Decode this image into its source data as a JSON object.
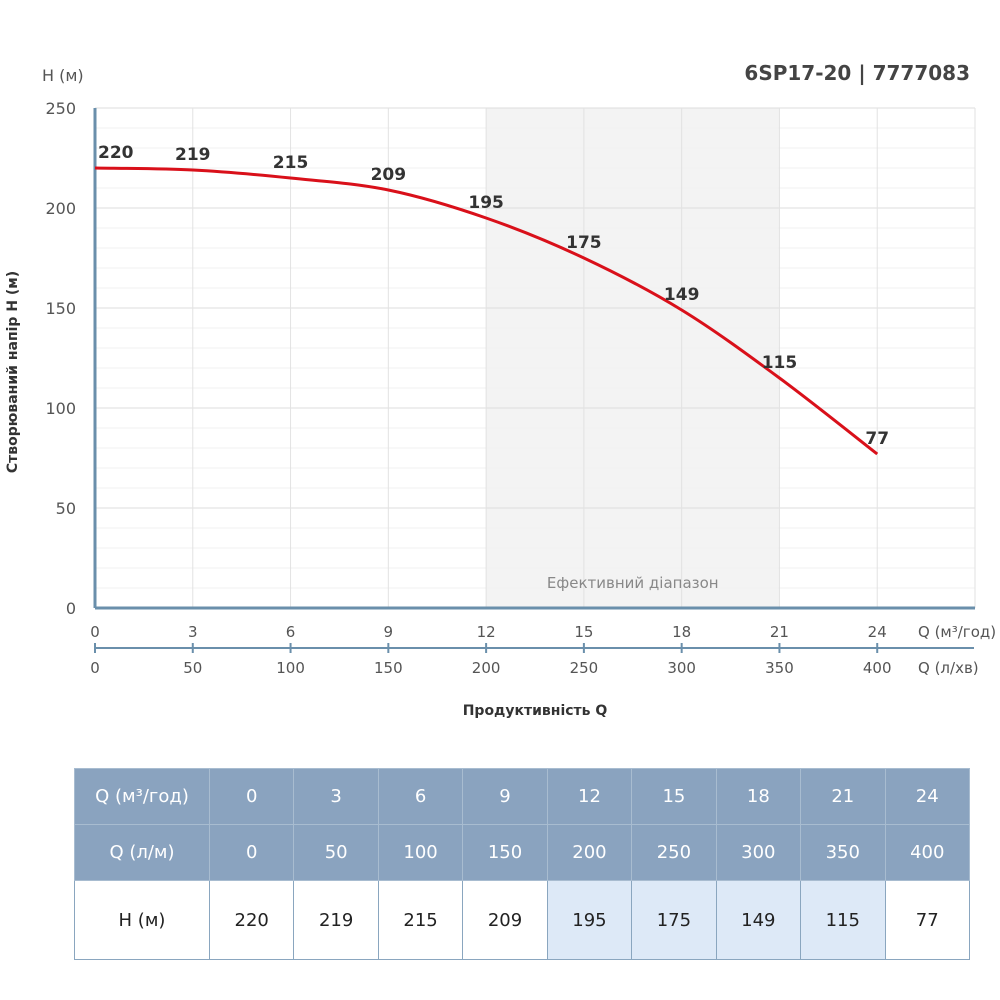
{
  "title": "6SP17-20 | 7777083",
  "chart_data": {
    "type": "line",
    "y_unit_label": "H (м)",
    "ylabel": "Створюваний напір H (м)",
    "xlabel": "Продуктивність Q",
    "x_unit_label": "Q (м³/год)",
    "x2_unit_label": "Q (л/хв)",
    "x": [
      0,
      3,
      6,
      9,
      12,
      15,
      18,
      21,
      24
    ],
    "x2": [
      0,
      50,
      100,
      150,
      200,
      250,
      300,
      350,
      400
    ],
    "values": [
      220,
      219,
      215,
      209,
      195,
      175,
      149,
      115,
      77
    ],
    "ylim": [
      0,
      250
    ],
    "yticks": [
      0,
      50,
      100,
      150,
      200,
      250
    ],
    "xlim": [
      0,
      27
    ],
    "grid": true,
    "efficient_range": [
      12,
      21
    ],
    "efficient_range_label": "Ефективний діапазон",
    "line_color": "#d9101a",
    "axis_color": "#6a8fab",
    "shade_color": "#f3f3f3"
  },
  "table": {
    "row_labels": [
      "Q (м³/год)",
      "Q (л/м)",
      "H (м)"
    ],
    "efficient_cols": [
      4,
      5,
      6,
      7
    ]
  }
}
